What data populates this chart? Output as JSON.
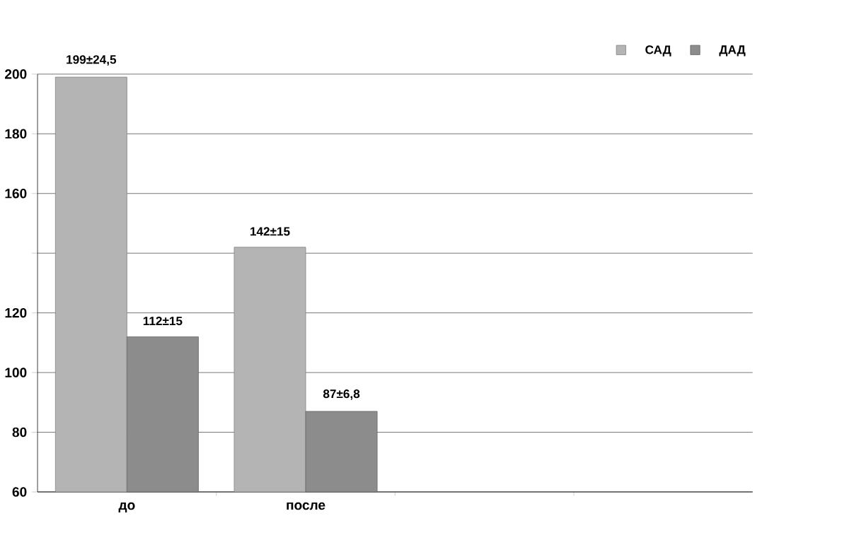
{
  "chart_data": {
    "type": "bar",
    "categories": [
      "до",
      "после",
      null,
      null
    ],
    "series": [
      {
        "name": "САД",
        "color": "#b4b4b4",
        "values": [
          199,
          142,
          null,
          null
        ],
        "value_labels": [
          "199±24,5",
          "142±15",
          null,
          null
        ]
      },
      {
        "name": "ДАД",
        "color": "#8c8c8c",
        "values": [
          112,
          87,
          null,
          null
        ],
        "value_labels": [
          "112±15",
          "87±6,8",
          null,
          null
        ]
      }
    ],
    "ylim": [
      60,
      200
    ],
    "yticks": [
      60,
      80,
      100,
      120,
      {
        "value": 140,
        "label": null
      },
      160,
      180,
      200
    ],
    "grid": "y",
    "legend": "top right"
  }
}
